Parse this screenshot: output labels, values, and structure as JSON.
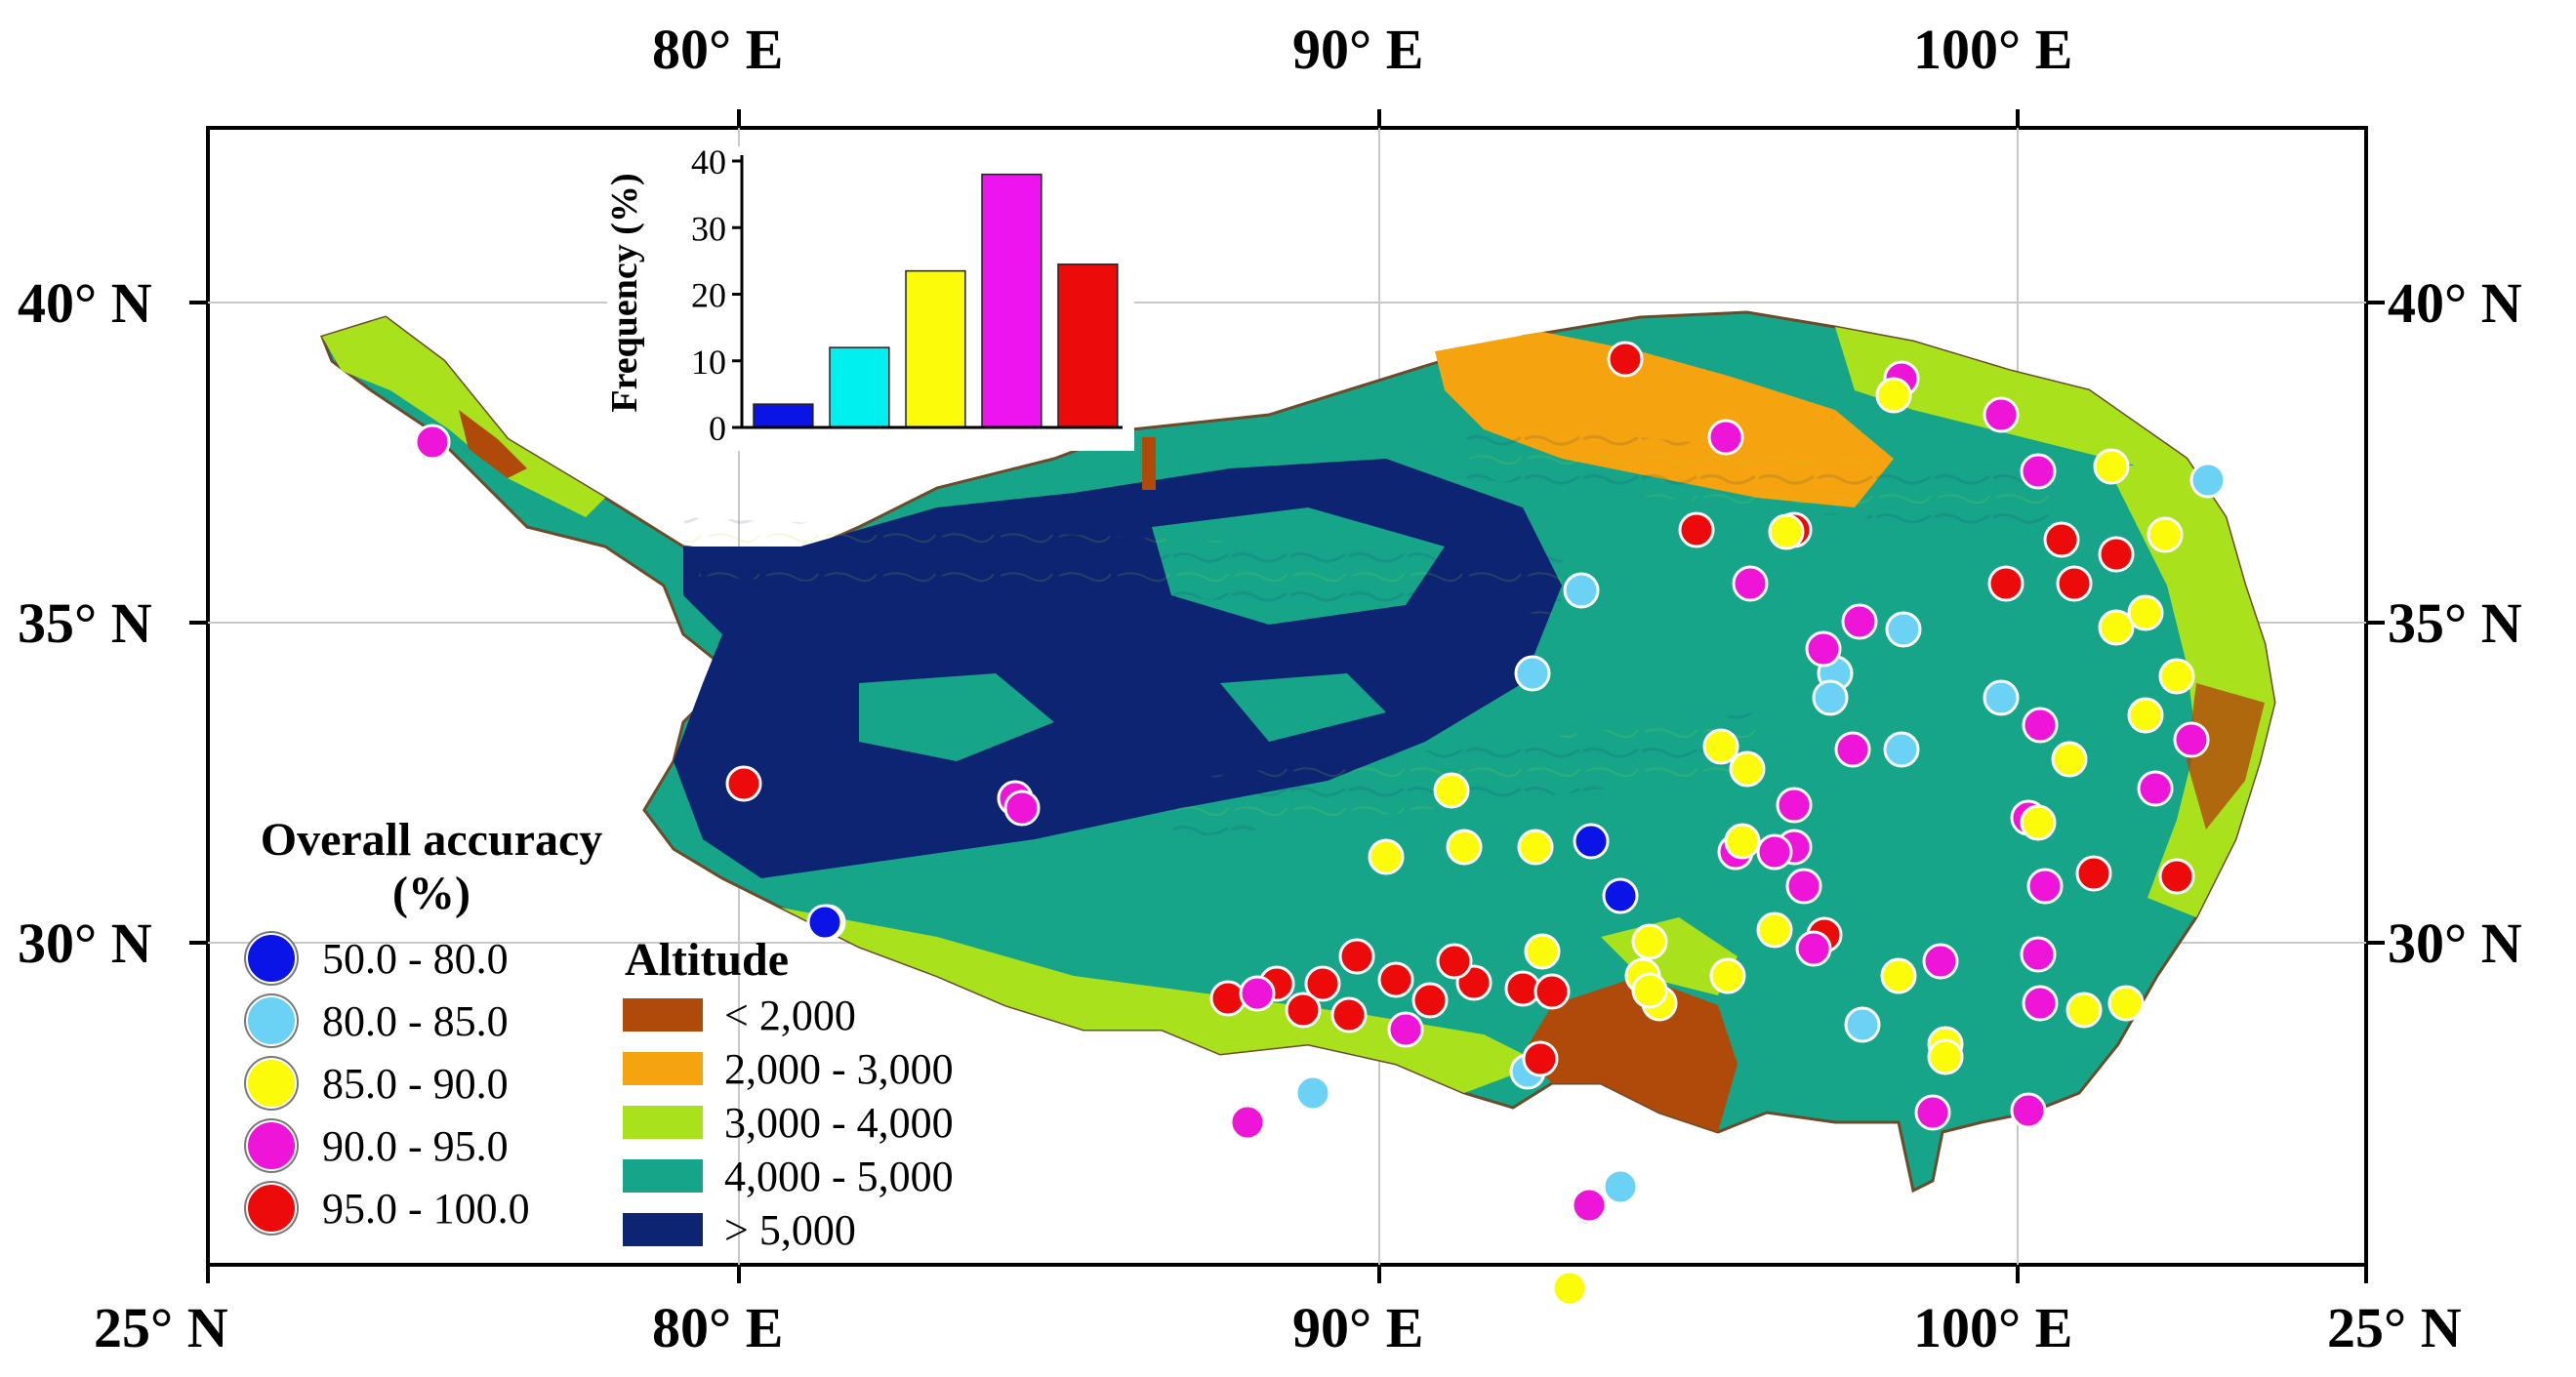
{
  "axes": {
    "top_labels": [
      "80° E",
      "90° E",
      "100° E"
    ],
    "bottom_labels": [
      "25° N",
      "80° E",
      "90° E",
      "100° E",
      "25° N"
    ],
    "left_labels": [
      "40° N",
      "35° N",
      "30° N"
    ],
    "right_labels": [
      "40° N",
      "35° N",
      "30° N"
    ]
  },
  "legend_accuracy": {
    "title": "Overall accuracy (%)",
    "items": [
      {
        "label": "50.0 - 80.0",
        "color": "#0a14e6"
      },
      {
        "label": "80.0 - 85.0",
        "color": "#6cd2f5"
      },
      {
        "label": "85.0 - 90.0",
        "color": "#fbfb0a"
      },
      {
        "label": "90.0 - 95.0",
        "color": "#ee14d8"
      },
      {
        "label": "95.0 - 100.0",
        "color": "#ec0a0a"
      }
    ]
  },
  "legend_altitude": {
    "title": "Altitude",
    "items": [
      {
        "label": "< 2,000",
        "color": "#b04a0a"
      },
      {
        "label": "2,000 - 3,000",
        "color": "#f5a30f"
      },
      {
        "label": "3,000 - 4,000",
        "color": "#a9e21d"
      },
      {
        "label": "4,000 - 5,000",
        "color": "#17a589"
      },
      {
        "label": "> 5,000",
        "color": "#0d2472"
      }
    ]
  },
  "chart_data": {
    "type": "bar",
    "ylabel": "Frequency (%)",
    "yticks": [
      0,
      10,
      20,
      30,
      40
    ],
    "ylim": [
      0,
      40
    ],
    "values": [
      3.5,
      12,
      23.5,
      38,
      24.5
    ],
    "colors": [
      "#0a14e6",
      "#00f0f0",
      "#fbfb0a",
      "#ee14f0",
      "#ec0a0a"
    ]
  }
}
